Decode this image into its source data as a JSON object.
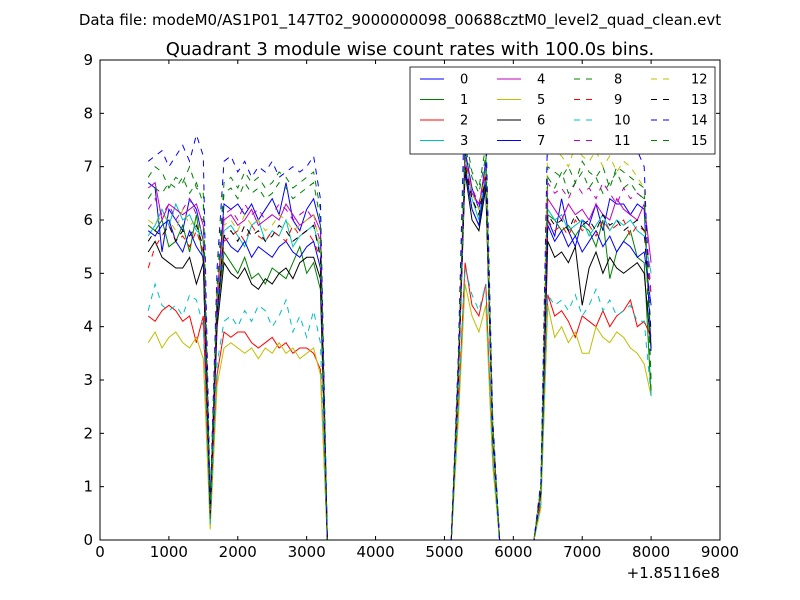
{
  "suptitle": "Data file: modeM0/AS1P01_147T02_9000000098_00688cztM0_level2_quad_clean.evt",
  "chart_data": {
    "type": "line",
    "title": "Quadrant 3 module wise count rates with 100.0s bins.",
    "xlabel": "",
    "ylabel": "",
    "x_offset_label": "+1.85116e8",
    "xlim": [
      0,
      9000
    ],
    "ylim": [
      0,
      9
    ],
    "x_ticks": [
      0,
      1000,
      2000,
      3000,
      4000,
      5000,
      6000,
      7000,
      8000,
      9000
    ],
    "y_ticks": [
      0,
      1,
      2,
      3,
      4,
      5,
      6,
      7,
      8,
      9
    ],
    "grid": false,
    "legend_position": "top-right",
    "legend_columns": 4,
    "x": [
      700,
      800,
      900,
      1000,
      1100,
      1200,
      1300,
      1400,
      1500,
      1600,
      1700,
      1800,
      1900,
      2000,
      2100,
      2200,
      2300,
      2400,
      2500,
      2600,
      2700,
      2800,
      2900,
      3000,
      3100,
      3200,
      3300,
      3400,
      5100,
      5200,
      5300,
      5400,
      5500,
      5600,
      5700,
      5800,
      6300,
      6400,
      6500,
      6600,
      6700,
      6800,
      6900,
      7000,
      7100,
      7200,
      7300,
      7400,
      7500,
      7600,
      7700,
      7800,
      7900,
      8000
    ],
    "series": [
      {
        "name": "0",
        "color": "#0000ff",
        "dash": "solid",
        "values": [
          6.7,
          6.6,
          5.4,
          6.2,
          6.0,
          5.8,
          6.4,
          6.2,
          5.6,
          0.6,
          4.5,
          6.3,
          6.2,
          6.3,
          6.1,
          6.3,
          6.0,
          6.2,
          6.4,
          6.1,
          6.7,
          6.0,
          5.8,
          6.2,
          6.4,
          5.9,
          0.0,
          0.0,
          0.0,
          3.2,
          7.3,
          6.6,
          6.2,
          7.1,
          2.1,
          0.0,
          0.0,
          1.0,
          6.0,
          5.7,
          6.4,
          5.8,
          5.5,
          6.0,
          5.9,
          6.3,
          5.8,
          6.4,
          6.3,
          6.3,
          6.1,
          6.3,
          6.2,
          3.6
        ]
      },
      {
        "name": "1",
        "color": "#008000",
        "dash": "solid",
        "values": [
          5.9,
          5.8,
          6.0,
          5.5,
          5.6,
          5.9,
          5.4,
          6.1,
          5.2,
          0.6,
          4.2,
          5.4,
          5.2,
          5.0,
          5.3,
          4.9,
          5.0,
          4.8,
          5.1,
          5.0,
          4.9,
          5.2,
          5.5,
          5.0,
          5.2,
          4.7,
          0.0,
          0.0,
          0.0,
          3.0,
          7.0,
          6.2,
          5.9,
          6.7,
          2.0,
          0.0,
          0.0,
          0.9,
          6.1,
          6.0,
          5.8,
          5.9,
          5.7,
          5.9,
          5.8,
          5.5,
          6.0,
          4.9,
          5.4,
          5.6,
          5.8,
          5.3,
          5.2,
          2.7
        ]
      },
      {
        "name": "2",
        "color": "#ff0000",
        "dash": "solid",
        "values": [
          4.2,
          4.1,
          4.3,
          4.4,
          4.3,
          4.1,
          4.2,
          3.7,
          4.2,
          0.4,
          3.1,
          3.9,
          3.8,
          3.9,
          3.9,
          3.7,
          3.6,
          3.7,
          3.8,
          3.6,
          3.7,
          3.5,
          3.6,
          3.6,
          3.5,
          3.2,
          0.0,
          0.0,
          0.0,
          2.4,
          5.2,
          4.4,
          4.2,
          4.8,
          1.5,
          0.0,
          0.0,
          0.7,
          4.6,
          4.2,
          4.3,
          4.1,
          3.8,
          4.2,
          4.1,
          4.0,
          4.3,
          4.0,
          4.2,
          4.3,
          4.5,
          4.0,
          4.1,
          3.8
        ]
      },
      {
        "name": "3",
        "color": "#00bfbf",
        "dash": "solid",
        "values": [
          5.7,
          5.9,
          6.2,
          5.9,
          6.3,
          6.0,
          6.1,
          5.8,
          5.7,
          0.5,
          4.4,
          5.8,
          5.9,
          5.7,
          5.5,
          5.9,
          6.0,
          5.6,
          5.8,
          5.7,
          6.0,
          5.5,
          5.7,
          5.8,
          5.9,
          5.4,
          0.0,
          0.0,
          0.0,
          3.0,
          7.2,
          6.4,
          6.0,
          7.0,
          2.1,
          0.0,
          0.0,
          0.9,
          6.2,
          6.0,
          6.1,
          5.8,
          5.9,
          6.0,
          5.7,
          5.9,
          6.1,
          5.8,
          6.0,
          5.9,
          6.0,
          5.8,
          5.7,
          5.0
        ]
      },
      {
        "name": "4",
        "color": "#bf00bf",
        "dash": "solid",
        "values": [
          6.6,
          6.7,
          6.0,
          6.3,
          6.2,
          6.1,
          6.2,
          6.3,
          5.9,
          0.6,
          4.6,
          6.0,
          6.1,
          5.9,
          6.0,
          6.2,
          5.9,
          6.0,
          6.1,
          6.0,
          6.3,
          6.1,
          5.9,
          6.0,
          6.1,
          5.8,
          0.0,
          0.0,
          0.0,
          3.1,
          7.1,
          6.5,
          6.3,
          6.9,
          2.1,
          0.0,
          0.0,
          1.0,
          6.4,
          6.2,
          6.0,
          6.3,
          6.1,
          6.2,
          6.0,
          6.3,
          6.1,
          6.0,
          6.4,
          6.2,
          6.1,
          6.0,
          6.3,
          5.2
        ]
      },
      {
        "name": "5",
        "color": "#bfbf00",
        "dash": "solid",
        "values": [
          3.7,
          3.9,
          3.6,
          3.8,
          3.9,
          3.7,
          3.6,
          3.8,
          3.4,
          0.2,
          2.9,
          3.6,
          3.7,
          3.6,
          3.5,
          3.6,
          3.4,
          3.6,
          3.5,
          3.7,
          3.5,
          3.6,
          3.4,
          3.5,
          3.6,
          3.1,
          0.0,
          0.0,
          0.0,
          2.2,
          4.8,
          4.2,
          3.9,
          4.4,
          1.4,
          0.0,
          0.0,
          0.6,
          4.4,
          3.8,
          4.0,
          3.7,
          3.9,
          3.5,
          3.5,
          4.0,
          3.8,
          3.7,
          3.9,
          3.8,
          3.6,
          3.5,
          3.3,
          2.7
        ]
      },
      {
        "name": "6",
        "color": "#000000",
        "dash": "solid",
        "values": [
          5.4,
          5.6,
          5.3,
          5.2,
          5.1,
          5.1,
          5.3,
          4.8,
          5.2,
          0.4,
          4.0,
          5.2,
          5.0,
          4.9,
          5.1,
          4.8,
          4.7,
          4.9,
          4.8,
          5.0,
          5.1,
          4.9,
          5.2,
          5.3,
          5.3,
          4.9,
          0.0,
          0.0,
          0.0,
          2.9,
          6.9,
          6.0,
          5.8,
          6.6,
          1.9,
          0.0,
          0.0,
          0.9,
          5.6,
          5.3,
          5.4,
          5.2,
          5.5,
          4.4,
          5.1,
          5.4,
          5.0,
          5.3,
          5.1,
          5.0,
          5.1,
          5.2,
          5.0,
          3.6
        ]
      },
      {
        "name": "7",
        "color": "#0000ff",
        "dash": "solid",
        "values": [
          5.8,
          5.7,
          5.9,
          6.0,
          5.6,
          5.4,
          5.8,
          5.5,
          5.3,
          0.5,
          4.2,
          5.7,
          5.5,
          5.4,
          5.6,
          5.3,
          5.5,
          5.4,
          5.3,
          5.5,
          5.6,
          5.4,
          5.3,
          5.5,
          5.6,
          5.1,
          0.0,
          0.0,
          0.0,
          3.0,
          7.0,
          6.2,
          5.9,
          6.8,
          2.0,
          0.0,
          0.0,
          0.9,
          5.9,
          5.6,
          5.8,
          5.5,
          5.7,
          5.4,
          5.6,
          5.8,
          5.5,
          5.7,
          5.4,
          5.6,
          5.5,
          5.3,
          5.4,
          4.4
        ]
      },
      {
        "name": "8",
        "color": "#008000",
        "dash": "dashed",
        "values": [
          6.8,
          7.0,
          6.9,
          6.6,
          6.8,
          6.7,
          7.0,
          6.6,
          6.5,
          0.6,
          4.8,
          6.7,
          6.8,
          6.6,
          6.9,
          6.7,
          6.8,
          6.6,
          6.7,
          6.9,
          6.8,
          6.6,
          6.7,
          6.8,
          6.9,
          6.2,
          0.0,
          0.0,
          0.0,
          3.3,
          7.6,
          6.9,
          6.6,
          7.4,
          2.2,
          0.0,
          0.0,
          1.0,
          7.0,
          6.9,
          6.8,
          7.0,
          6.7,
          7.1,
          6.9,
          6.8,
          7.0,
          6.6,
          7.0,
          6.9,
          6.8,
          6.7,
          6.6,
          3.0
        ]
      },
      {
        "name": "9",
        "color": "#ff0000",
        "dash": "dashed",
        "values": [
          5.1,
          5.5,
          5.7,
          5.9,
          5.6,
          5.7,
          5.5,
          5.8,
          5.4,
          0.5,
          4.3,
          5.6,
          5.7,
          5.8,
          5.6,
          5.9,
          5.7,
          5.6,
          5.8,
          5.7,
          5.6,
          5.9,
          5.7,
          5.8,
          5.6,
          5.3,
          0.0,
          0.0,
          0.0,
          3.0,
          7.1,
          6.4,
          6.1,
          6.9,
          2.0,
          0.0,
          0.0,
          0.9,
          6.0,
          5.8,
          5.9,
          5.7,
          6.0,
          5.8,
          5.9,
          5.7,
          6.0,
          5.8,
          5.9,
          6.0,
          5.7,
          5.9,
          5.8,
          4.6
        ]
      },
      {
        "name": "10",
        "color": "#00bfbf",
        "dash": "dashed",
        "values": [
          4.3,
          4.8,
          4.4,
          4.3,
          4.4,
          4.2,
          4.6,
          4.5,
          4.0,
          0.3,
          3.3,
          4.1,
          4.2,
          4.0,
          4.3,
          4.1,
          4.4,
          4.3,
          4.0,
          4.2,
          4.5,
          3.9,
          4.2,
          3.8,
          4.3,
          3.7,
          0.0,
          0.0,
          0.0,
          2.4,
          5.1,
          4.6,
          4.3,
          4.8,
          1.5,
          0.0,
          0.0,
          0.7,
          4.6,
          4.4,
          4.5,
          4.3,
          4.6,
          4.2,
          4.4,
          4.7,
          4.3,
          4.5,
          4.2,
          4.3,
          4.4,
          4.1,
          4.1,
          2.7
        ]
      },
      {
        "name": "11",
        "color": "#bf00bf",
        "dash": "dashed",
        "values": [
          6.2,
          6.4,
          6.1,
          6.3,
          6.0,
          6.2,
          6.4,
          6.1,
          6.0,
          0.5,
          4.5,
          6.1,
          6.2,
          6.0,
          6.3,
          6.1,
          6.2,
          6.0,
          6.1,
          6.3,
          6.2,
          6.0,
          6.1,
          6.2,
          6.0,
          5.6,
          0.0,
          0.0,
          0.0,
          3.1,
          7.2,
          6.6,
          6.3,
          7.0,
          2.1,
          0.0,
          0.0,
          1.0,
          6.7,
          6.5,
          6.6,
          6.4,
          6.7,
          6.5,
          6.6,
          6.4,
          6.7,
          6.5,
          6.3,
          6.6,
          6.4,
          6.5,
          6.4,
          4.6
        ]
      },
      {
        "name": "12",
        "color": "#bfbf00",
        "dash": "dashed",
        "values": [
          6.0,
          5.9,
          6.1,
          6.0,
          5.8,
          6.2,
          5.9,
          6.0,
          5.7,
          0.5,
          4.4,
          5.9,
          6.0,
          5.8,
          6.1,
          5.9,
          6.0,
          5.8,
          5.9,
          6.1,
          6.0,
          5.8,
          5.9,
          6.0,
          6.1,
          5.5,
          0.0,
          0.0,
          0.0,
          3.0,
          7.1,
          6.5,
          6.2,
          6.9,
          2.0,
          0.0,
          0.0,
          1.0,
          7.5,
          7.3,
          7.2,
          7.0,
          7.4,
          7.2,
          7.1,
          7.3,
          7.0,
          7.2,
          6.9,
          7.1,
          7.0,
          6.8,
          6.6,
          3.8
        ]
      },
      {
        "name": "13",
        "color": "#000000",
        "dash": "dashed",
        "values": [
          5.6,
          5.8,
          5.7,
          5.9,
          5.6,
          5.8,
          5.7,
          5.9,
          5.5,
          0.5,
          4.3,
          5.7,
          5.8,
          5.6,
          5.9,
          5.7,
          5.8,
          5.6,
          5.7,
          5.9,
          5.8,
          5.6,
          5.7,
          5.8,
          5.9,
          5.3,
          0.0,
          0.0,
          0.0,
          3.0,
          7.0,
          6.4,
          6.1,
          6.8,
          2.0,
          0.0,
          0.0,
          0.9,
          6.1,
          5.9,
          6.0,
          5.8,
          6.1,
          5.9,
          6.0,
          5.8,
          6.1,
          5.9,
          6.0,
          5.8,
          5.9,
          6.0,
          5.8,
          3.9
        ]
      },
      {
        "name": "14",
        "color": "#0000ff",
        "dash": "dashed",
        "values": [
          7.1,
          7.2,
          7.3,
          7.0,
          7.2,
          7.4,
          7.1,
          7.6,
          7.2,
          0.7,
          5.1,
          7.1,
          7.2,
          6.9,
          7.1,
          6.8,
          7.0,
          6.9,
          7.1,
          6.8,
          6.9,
          7.0,
          6.9,
          7.0,
          7.2,
          6.4,
          0.0,
          0.0,
          0.0,
          3.4,
          8.6,
          7.6,
          7.3,
          7.8,
          2.3,
          0.0,
          0.0,
          1.1,
          7.9,
          7.6,
          7.8,
          7.4,
          7.7,
          7.5,
          7.8,
          7.3,
          7.6,
          7.7,
          7.4,
          7.5,
          7.6,
          7.3,
          7.0,
          3.5
        ]
      },
      {
        "name": "15",
        "color": "#008000",
        "dash": "dashed",
        "values": [
          6.4,
          6.6,
          6.5,
          6.7,
          6.6,
          6.8,
          6.5,
          6.7,
          6.3,
          0.6,
          4.7,
          6.5,
          6.6,
          6.4,
          6.7,
          6.5,
          6.6,
          6.4,
          6.5,
          6.7,
          6.6,
          6.4,
          6.5,
          6.6,
          6.7,
          6.0,
          0.0,
          0.0,
          0.0,
          3.2,
          7.4,
          6.8,
          6.5,
          7.2,
          2.1,
          0.0,
          0.0,
          1.0,
          6.8,
          6.6,
          6.9,
          6.5,
          6.7,
          6.9,
          6.6,
          6.8,
          6.5,
          6.7,
          6.9,
          6.6,
          6.7,
          6.5,
          6.4,
          2.8
        ]
      }
    ]
  }
}
